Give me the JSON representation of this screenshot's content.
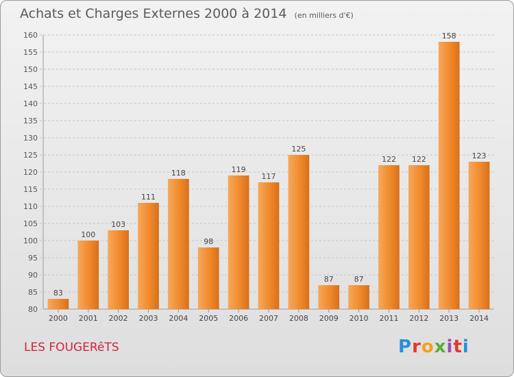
{
  "title": "Achats et Charges Externes 2000 à 2014",
  "unit": "(en milliers d'€)",
  "commune": "LES FOUGERêTS",
  "logo": "Proxiti",
  "colors": {
    "bar": "#f08a2c",
    "bar_light": "#f7a85a",
    "bar_dark": "#d8701a",
    "grid": "#c4c4c4",
    "commune": "#d0243a"
  },
  "chart_data": {
    "type": "bar",
    "categories": [
      "2000",
      "2001",
      "2002",
      "2003",
      "2004",
      "2005",
      "2006",
      "2007",
      "2008",
      "2009",
      "2010",
      "2011",
      "2012",
      "2013",
      "2014"
    ],
    "values": [
      83,
      100,
      103,
      111,
      118,
      98,
      119,
      117,
      125,
      87,
      87,
      122,
      122,
      158,
      123
    ],
    "ylim": [
      80,
      160
    ],
    "yticks": [
      80,
      85,
      90,
      95,
      100,
      105,
      110,
      115,
      120,
      125,
      130,
      135,
      140,
      145,
      150,
      155,
      160
    ],
    "grid": true,
    "data_labels": true
  }
}
